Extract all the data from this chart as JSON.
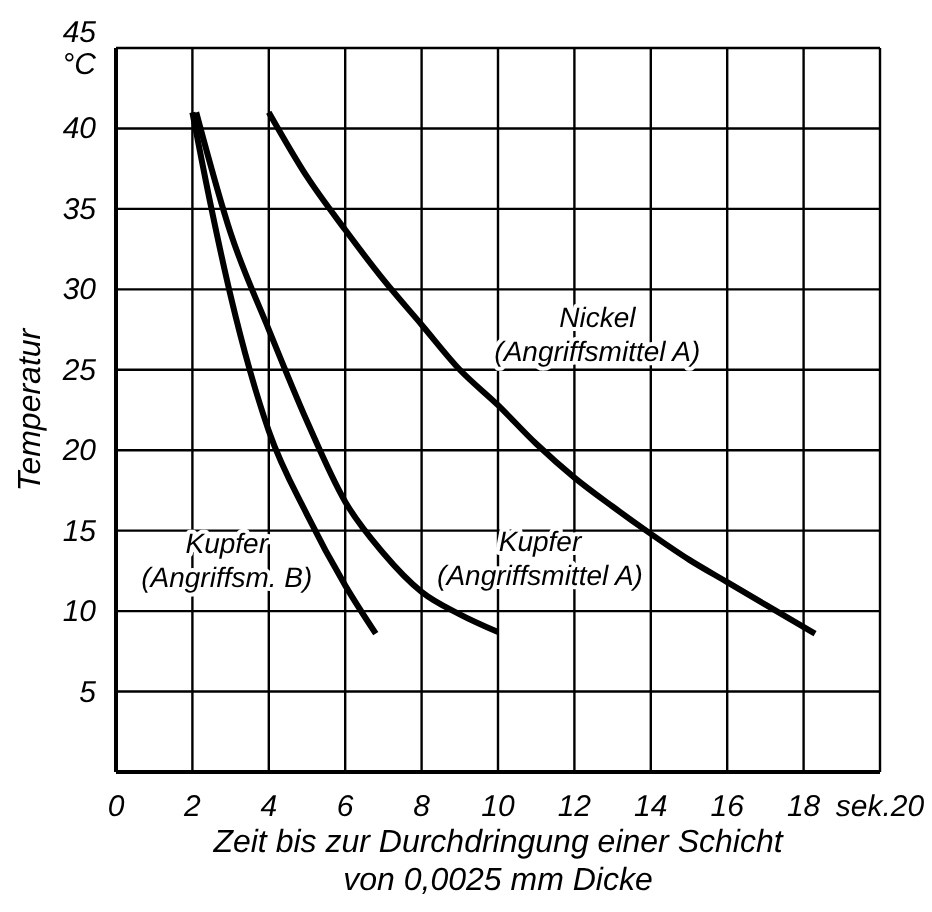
{
  "chart_data": {
    "type": "line",
    "xlabel": "Zeit bis zur Durchdringung einer Schicht\nvon 0,0025 mm Dicke",
    "ylabel": "Temperatur",
    "xlim": [
      0,
      20
    ],
    "xticks": [
      0,
      2,
      4,
      6,
      8,
      10,
      12,
      14,
      16,
      18,
      {
        "value": 20,
        "label": "sek.20"
      }
    ],
    "ylim": [
      0,
      45
    ],
    "yticks": [
      {
        "value": 0,
        "label": null
      },
      5,
      10,
      15,
      20,
      25,
      30,
      35,
      40,
      {
        "value": 45,
        "label": "45\n°C"
      }
    ],
    "grid": true,
    "legend": false,
    "marker": "none",
    "line_style": "solid",
    "series": [
      {
        "name": "Nickel\n(Angriffsmittel A)",
        "color": "#000000",
        "x": [
          4,
          5,
          6,
          7,
          8,
          9,
          10,
          11,
          12,
          13,
          14,
          15,
          16,
          17,
          18.3
        ],
        "values": [
          41,
          37,
          33.7,
          30.6,
          27.8,
          25,
          22.8,
          20.4,
          18.3,
          16.5,
          14.8,
          13.2,
          11.8,
          10.4,
          8.6
        ]
      },
      {
        "name": "Kupfer\n(Angriffsmittel A)",
        "color": "#000000",
        "x": [
          2.1,
          3,
          4,
          5,
          6,
          7,
          8,
          9,
          10
        ],
        "values": [
          41,
          33.5,
          27.5,
          21.8,
          16.8,
          13.6,
          11.2,
          9.8,
          8.7
        ]
      },
      {
        "name": "Kupfer\n(Angriffsm. B)",
        "color": "#000000",
        "x": [
          2,
          2.5,
          3,
          3.5,
          4,
          5,
          6,
          6.8
        ],
        "values": [
          41,
          35,
          29.6,
          25,
          21.2,
          16,
          11.6,
          8.6
        ]
      }
    ]
  }
}
